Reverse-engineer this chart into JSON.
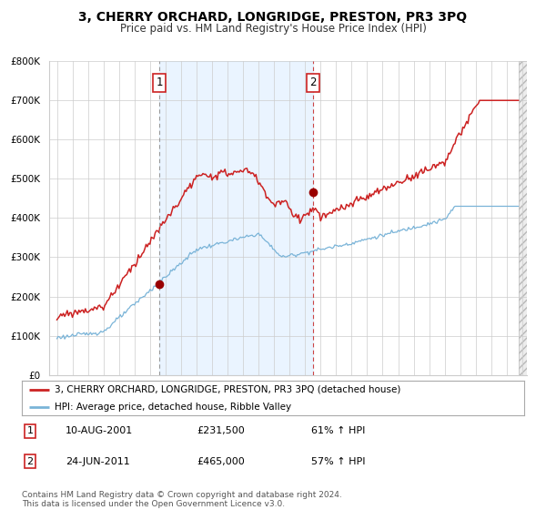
{
  "title": "3, CHERRY ORCHARD, LONGRIDGE, PRESTON, PR3 3PQ",
  "subtitle": "Price paid vs. HM Land Registry's House Price Index (HPI)",
  "xlim": [
    1994.5,
    2025.3
  ],
  "ylim": [
    0,
    800000
  ],
  "yticks": [
    0,
    100000,
    200000,
    300000,
    400000,
    500000,
    600000,
    700000,
    800000
  ],
  "ytick_labels": [
    "£0",
    "£100K",
    "£200K",
    "£300K",
    "£400K",
    "£500K",
    "£600K",
    "£700K",
    "£800K"
  ],
  "xticks": [
    1995,
    1996,
    1997,
    1998,
    1999,
    2000,
    2001,
    2002,
    2003,
    2004,
    2005,
    2006,
    2007,
    2008,
    2009,
    2010,
    2011,
    2012,
    2013,
    2014,
    2015,
    2016,
    2017,
    2018,
    2019,
    2020,
    2021,
    2022,
    2023,
    2024,
    2025
  ],
  "hpi_color": "#7ab4d8",
  "price_color": "#cc2222",
  "marker_color": "#990000",
  "shade_color": "#ddeeff",
  "grid_color": "#cccccc",
  "background_color": "#ffffff",
  "sale1_x": 2001.6,
  "sale1_y": 231500,
  "sale1_label": "1",
  "sale1_date": "10-AUG-2001",
  "sale1_price": "£231,500",
  "sale1_hpi": "61% ↑ HPI",
  "sale2_x": 2011.5,
  "sale2_y": 465000,
  "sale2_label": "2",
  "sale2_date": "24-JUN-2011",
  "sale2_price": "£465,000",
  "sale2_hpi": "57% ↑ HPI",
  "legend_line1": "3, CHERRY ORCHARD, LONGRIDGE, PRESTON, PR3 3PQ (detached house)",
  "legend_line2": "HPI: Average price, detached house, Ribble Valley",
  "footer1": "Contains HM Land Registry data © Crown copyright and database right 2024.",
  "footer2": "This data is licensed under the Open Government Licence v3.0.",
  "title_fontsize": 10,
  "subtitle_fontsize": 8.5,
  "axis_fontsize": 7.5,
  "legend_fontsize": 8,
  "footer_fontsize": 6.5
}
